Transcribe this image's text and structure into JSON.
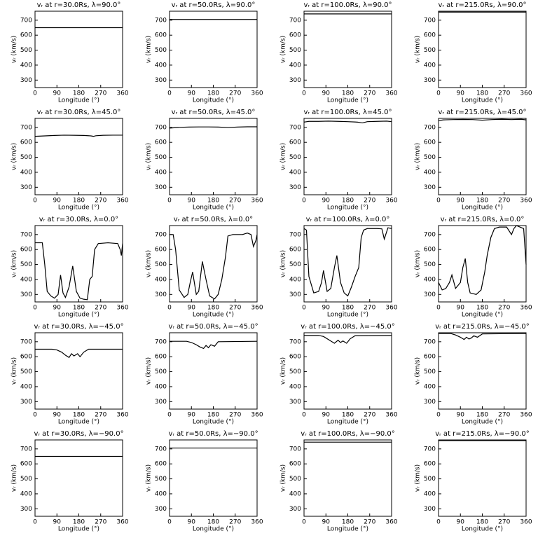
{
  "chart_data": [
    {
      "type": "line",
      "title": "vᵣ at r=30.0Rs, λ=90.0°",
      "xlabel": "Longitude (°)",
      "ylabel": "vᵣ (km/s)",
      "x": [
        0,
        360
      ],
      "values": [
        650,
        650
      ],
      "color": "#000000",
      "xlim": [
        0,
        360
      ],
      "ylim": [
        250,
        760
      ],
      "xticks": [
        0,
        90,
        180,
        270,
        360
      ],
      "yticks": [
        300,
        400,
        500,
        600,
        700
      ]
    },
    {
      "type": "line",
      "title": "vᵣ at r=50.0Rs, λ=90.0°",
      "xlabel": "Longitude (°)",
      "ylabel": "vᵣ (km/s)",
      "x": [
        0,
        360
      ],
      "values": [
        705,
        705
      ],
      "color": "#000000",
      "xlim": [
        0,
        360
      ],
      "ylim": [
        250,
        760
      ],
      "xticks": [
        0,
        90,
        180,
        270,
        360
      ],
      "yticks": [
        300,
        400,
        500,
        600,
        700
      ]
    },
    {
      "type": "line",
      "title": "vᵣ at r=100.0Rs, λ=90.0°",
      "xlabel": "Longitude (°)",
      "ylabel": "vᵣ (km/s)",
      "x": [
        0,
        360
      ],
      "values": [
        742,
        742
      ],
      "color": "#000000",
      "xlim": [
        0,
        360
      ],
      "ylim": [
        250,
        760
      ],
      "xticks": [
        0,
        90,
        180,
        270,
        360
      ],
      "yticks": [
        300,
        400,
        500,
        600,
        700
      ]
    },
    {
      "type": "line",
      "title": "vᵣ at r=215.0Rs, λ=90.0°",
      "xlabel": "Longitude (°)",
      "ylabel": "vᵣ (km/s)",
      "x": [
        0,
        360
      ],
      "values": [
        754,
        754
      ],
      "color": "#000000",
      "xlim": [
        0,
        360
      ],
      "ylim": [
        250,
        760
      ],
      "xticks": [
        0,
        90,
        180,
        270,
        360
      ],
      "yticks": [
        300,
        400,
        500,
        600,
        700
      ]
    },
    {
      "type": "line",
      "title": "vᵣ at r=30.0Rs, λ=45.0°",
      "xlabel": "Longitude (°)",
      "ylabel": "vᵣ (km/s)",
      "x": [
        0,
        40,
        80,
        120,
        160,
        200,
        230,
        240,
        250,
        280,
        320,
        360
      ],
      "values": [
        640,
        643,
        646,
        648,
        647,
        646,
        643,
        640,
        644,
        647,
        648,
        648
      ],
      "color": "#000000",
      "xlim": [
        0,
        360
      ],
      "ylim": [
        250,
        760
      ],
      "xticks": [
        0,
        90,
        180,
        270,
        360
      ],
      "yticks": [
        300,
        400,
        500,
        600,
        700
      ]
    },
    {
      "type": "line",
      "title": "vᵣ at r=50.0Rs, λ=45.0°",
      "xlabel": "Longitude (°)",
      "ylabel": "vᵣ (km/s)",
      "x": [
        0,
        40,
        80,
        120,
        160,
        200,
        240,
        280,
        320,
        360
      ],
      "values": [
        695,
        700,
        702,
        703,
        703,
        702,
        699,
        702,
        704,
        704
      ],
      "color": "#000000",
      "xlim": [
        0,
        360
      ],
      "ylim": [
        250,
        760
      ],
      "xticks": [
        0,
        90,
        180,
        270,
        360
      ],
      "yticks": [
        300,
        400,
        500,
        600,
        700
      ]
    },
    {
      "type": "line",
      "title": "vᵣ at r=100.0Rs, λ=45.0°",
      "xlabel": "Longitude (°)",
      "ylabel": "vᵣ (km/s)",
      "x": [
        0,
        20,
        60,
        100,
        140,
        180,
        220,
        240,
        260,
        300,
        340,
        360
      ],
      "values": [
        735,
        740,
        740,
        742,
        740,
        738,
        735,
        730,
        738,
        740,
        742,
        738
      ],
      "color": "#000000",
      "xlim": [
        0,
        360
      ],
      "ylim": [
        250,
        760
      ],
      "xticks": [
        0,
        90,
        180,
        270,
        360
      ],
      "yticks": [
        300,
        400,
        500,
        600,
        700
      ]
    },
    {
      "type": "line",
      "title": "vᵣ at r=215.0Rs, λ=45.0°",
      "xlabel": "Longitude (°)",
      "ylabel": "vᵣ (km/s)",
      "x": [
        0,
        20,
        60,
        100,
        140,
        180,
        220,
        260,
        300,
        340,
        360
      ],
      "values": [
        745,
        750,
        752,
        753,
        752,
        748,
        752,
        754,
        752,
        754,
        750
      ],
      "color": "#000000",
      "xlim": [
        0,
        360
      ],
      "ylim": [
        250,
        760
      ],
      "xticks": [
        0,
        90,
        180,
        270,
        360
      ],
      "yticks": [
        300,
        400,
        500,
        600,
        700
      ]
    },
    {
      "type": "line",
      "title": "vᵣ at r=30.0Rs, λ=0.0°",
      "xlabel": "Longitude (°)",
      "ylabel": "vᵣ (km/s)",
      "x": [
        0,
        30,
        40,
        50,
        65,
        80,
        95,
        105,
        115,
        125,
        140,
        155,
        170,
        185,
        200,
        215,
        225,
        235,
        245,
        260,
        300,
        340,
        350,
        355,
        360
      ],
      "values": [
        645,
        645,
        500,
        320,
        290,
        275,
        300,
        430,
        310,
        280,
        350,
        490,
        320,
        275,
        268,
        265,
        400,
        420,
        600,
        640,
        645,
        640,
        600,
        560,
        640
      ],
      "color": "#000000",
      "xlim": [
        0,
        360
      ],
      "ylim": [
        250,
        760
      ],
      "xticks": [
        0,
        90,
        180,
        270,
        360
      ],
      "yticks": [
        300,
        400,
        500,
        600,
        700
      ]
    },
    {
      "type": "line",
      "title": "vᵣ at r=50.0Rs, λ=0.0°",
      "xlabel": "Longitude (°)",
      "ylabel": "vᵣ (km/s)",
      "x": [
        0,
        15,
        25,
        40,
        60,
        75,
        85,
        95,
        110,
        120,
        135,
        150,
        165,
        185,
        200,
        215,
        230,
        240,
        260,
        300,
        320,
        335,
        345,
        355,
        360
      ],
      "values": [
        700,
        700,
        600,
        330,
        280,
        300,
        380,
        450,
        300,
        320,
        520,
        400,
        290,
        270,
        300,
        400,
        550,
        690,
        700,
        700,
        710,
        700,
        620,
        660,
        700
      ],
      "color": "#000000",
      "xlim": [
        0,
        360
      ],
      "ylim": [
        250,
        760
      ],
      "xticks": [
        0,
        90,
        180,
        270,
        360
      ],
      "yticks": [
        300,
        400,
        500,
        600,
        700
      ]
    },
    {
      "type": "line",
      "title": "vᵣ at r=100.0Rs, λ=0.0°",
      "xlabel": "Longitude (°)",
      "ylabel": "vᵣ (km/s)",
      "x": [
        0,
        10,
        20,
        40,
        60,
        72,
        80,
        95,
        110,
        125,
        135,
        150,
        165,
        180,
        195,
        210,
        225,
        235,
        245,
        260,
        300,
        320,
        330,
        345,
        360
      ],
      "values": [
        740,
        730,
        420,
        310,
        320,
        380,
        460,
        320,
        340,
        480,
        560,
        380,
        310,
        290,
        350,
        420,
        480,
        680,
        730,
        740,
        740,
        738,
        670,
        745,
        740
      ],
      "color": "#000000",
      "xlim": [
        0,
        360
      ],
      "ylim": [
        250,
        760
      ],
      "xticks": [
        0,
        90,
        180,
        270,
        360
      ],
      "yticks": [
        300,
        400,
        500,
        600,
        700
      ]
    },
    {
      "type": "line",
      "title": "vᵣ at r=215.0Rs, λ=0.0°",
      "xlabel": "Longitude (°)",
      "ylabel": "vᵣ (km/s)",
      "x": [
        0,
        15,
        30,
        45,
        55,
        70,
        90,
        100,
        110,
        120,
        130,
        155,
        175,
        190,
        200,
        215,
        230,
        250,
        280,
        300,
        310,
        320,
        350,
        360
      ],
      "values": [
        380,
        330,
        340,
        380,
        430,
        340,
        380,
        480,
        540,
        380,
        310,
        300,
        330,
        450,
        560,
        680,
        740,
        750,
        750,
        700,
        740,
        760,
        740,
        500
      ],
      "color": "#000000",
      "xlim": [
        0,
        360
      ],
      "ylim": [
        250,
        760
      ],
      "xticks": [
        0,
        90,
        180,
        270,
        360
      ],
      "yticks": [
        300,
        400,
        500,
        600,
        700
      ]
    },
    {
      "type": "line",
      "title": "vᵣ at r=30.0Rs, λ=−45.0°",
      "xlabel": "Longitude (°)",
      "ylabel": "vᵣ (km/s)",
      "x": [
        0,
        70,
        90,
        110,
        125,
        140,
        150,
        160,
        175,
        185,
        200,
        220,
        360
      ],
      "values": [
        650,
        650,
        645,
        630,
        610,
        595,
        620,
        605,
        620,
        600,
        630,
        650,
        650
      ],
      "color": "#000000",
      "xlim": [
        0,
        360
      ],
      "ylim": [
        250,
        760
      ],
      "xticks": [
        0,
        90,
        180,
        270,
        360
      ],
      "yticks": [
        300,
        400,
        500,
        600,
        700
      ]
    },
    {
      "type": "line",
      "title": "vᵣ at r=50.0Rs, λ=−45.0°",
      "xlabel": "Longitude (°)",
      "ylabel": "vᵣ (km/s)",
      "x": [
        0,
        70,
        90,
        110,
        125,
        140,
        150,
        160,
        170,
        185,
        200,
        360
      ],
      "values": [
        703,
        703,
        695,
        680,
        665,
        655,
        675,
        660,
        680,
        670,
        700,
        703
      ],
      "color": "#000000",
      "xlim": [
        0,
        360
      ],
      "ylim": [
        250,
        760
      ],
      "xticks": [
        0,
        90,
        180,
        270,
        360
      ],
      "yticks": [
        300,
        400,
        500,
        600,
        700
      ]
    },
    {
      "type": "line",
      "title": "vᵣ at r=100.0Rs, λ=−45.0°",
      "xlabel": "Longitude (°)",
      "ylabel": "vᵣ (km/s)",
      "x": [
        0,
        60,
        80,
        100,
        115,
        125,
        140,
        150,
        160,
        175,
        190,
        210,
        360
      ],
      "values": [
        742,
        742,
        735,
        715,
        700,
        690,
        710,
        695,
        705,
        690,
        720,
        740,
        742
      ],
      "color": "#000000",
      "xlim": [
        0,
        360
      ],
      "ylim": [
        250,
        760
      ],
      "xticks": [
        0,
        90,
        180,
        270,
        360
      ],
      "yticks": [
        300,
        400,
        500,
        600,
        700
      ]
    },
    {
      "type": "line",
      "title": "vᵣ at r=215.0Rs, λ=−45.0°",
      "xlabel": "Longitude (°)",
      "ylabel": "vᵣ (km/s)",
      "x": [
        0,
        50,
        70,
        90,
        105,
        115,
        125,
        135,
        145,
        160,
        180,
        360
      ],
      "values": [
        755,
        755,
        745,
        730,
        715,
        730,
        718,
        725,
        740,
        730,
        752,
        755
      ],
      "color": "#000000",
      "xlim": [
        0,
        360
      ],
      "ylim": [
        250,
        760
      ],
      "xticks": [
        0,
        90,
        180,
        270,
        360
      ],
      "yticks": [
        300,
        400,
        500,
        600,
        700
      ]
    },
    {
      "type": "line",
      "title": "vᵣ at r=30.0Rs, λ=−90.0°",
      "xlabel": "Longitude (°)",
      "ylabel": "vᵣ (km/s)",
      "x": [
        0,
        360
      ],
      "values": [
        650,
        650
      ],
      "color": "#000000",
      "xlim": [
        0,
        360
      ],
      "ylim": [
        250,
        760
      ],
      "xticks": [
        0,
        90,
        180,
        270,
        360
      ],
      "yticks": [
        300,
        400,
        500,
        600,
        700
      ]
    },
    {
      "type": "line",
      "title": "vᵣ at r=50.0Rs, λ=−90.0°",
      "xlabel": "Longitude (°)",
      "ylabel": "vᵣ (km/s)",
      "x": [
        0,
        360
      ],
      "values": [
        706,
        706
      ],
      "color": "#000000",
      "xlim": [
        0,
        360
      ],
      "ylim": [
        250,
        760
      ],
      "xticks": [
        0,
        90,
        180,
        270,
        360
      ],
      "yticks": [
        300,
        400,
        500,
        600,
        700
      ]
    },
    {
      "type": "line",
      "title": "vᵣ at r=100.0Rs, λ=−90.0°",
      "xlabel": "Longitude (°)",
      "ylabel": "vᵣ (km/s)",
      "x": [
        0,
        360
      ],
      "values": [
        745,
        745
      ],
      "color": "#000000",
      "xlim": [
        0,
        360
      ],
      "ylim": [
        250,
        760
      ],
      "xticks": [
        0,
        90,
        180,
        270,
        360
      ],
      "yticks": [
        300,
        400,
        500,
        600,
        700
      ]
    },
    {
      "type": "line",
      "title": "vᵣ at r=215.0Rs, λ=−90.0°",
      "xlabel": "Longitude (°)",
      "ylabel": "vᵣ (km/s)",
      "x": [
        0,
        360
      ],
      "values": [
        756,
        756
      ],
      "color": "#000000",
      "xlim": [
        0,
        360
      ],
      "ylim": [
        250,
        760
      ],
      "xticks": [
        0,
        90,
        180,
        270,
        360
      ],
      "yticks": [
        300,
        400,
        500,
        600,
        700
      ]
    }
  ]
}
